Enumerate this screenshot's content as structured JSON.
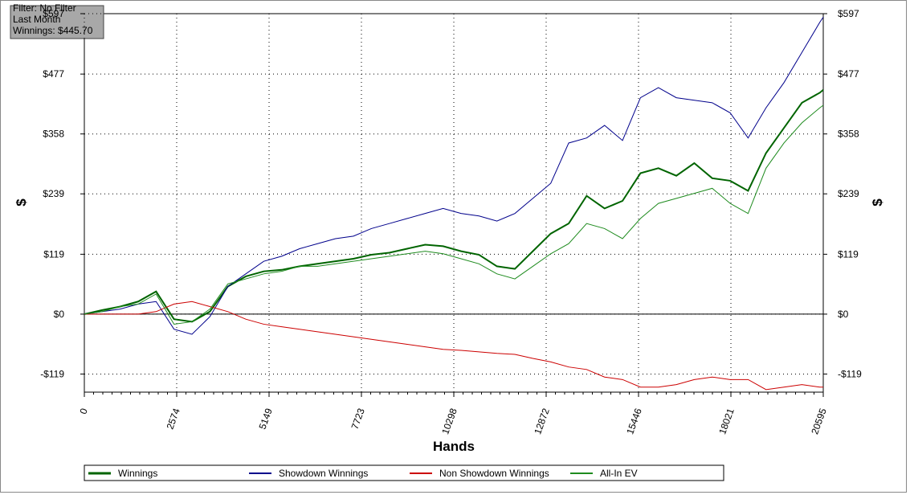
{
  "chart_data": {
    "type": "line",
    "filter_box": [
      "Filter: No Filter",
      "Last Month",
      "Winnings: $445.70"
    ],
    "xlabel": "Hands",
    "ylabel": "$",
    "y2label": "$",
    "xlim": [
      0,
      20595
    ],
    "xticks": [
      0,
      2574,
      5149,
      7723,
      10298,
      12872,
      15446,
      18021,
      20595
    ],
    "ylim": [
      -155,
      597
    ],
    "yticks": [
      {
        "value": -119,
        "label": "-$119"
      },
      {
        "value": 0,
        "label": "$0"
      },
      {
        "value": 119,
        "label": "$119"
      },
      {
        "value": 239,
        "label": "$239"
      },
      {
        "value": 358,
        "label": "$358"
      },
      {
        "value": 477,
        "label": "$477"
      },
      {
        "value": 597,
        "label": "$597"
      }
    ],
    "grid": true,
    "x": [
      0,
      500,
      1000,
      1500,
      2000,
      2500,
      3000,
      3500,
      4000,
      4500,
      5000,
      5500,
      6000,
      6500,
      7000,
      7500,
      8000,
      8500,
      9000,
      9500,
      10000,
      10500,
      11000,
      11500,
      12000,
      12500,
      13000,
      13500,
      14000,
      14500,
      15000,
      15500,
      16000,
      16500,
      17000,
      17500,
      18000,
      18500,
      19000,
      19500,
      20000,
      20500,
      20595
    ],
    "series": [
      {
        "name": "Winnings",
        "color": "#006400",
        "width": 2,
        "values": [
          0,
          8,
          15,
          25,
          45,
          -10,
          -15,
          5,
          55,
          75,
          85,
          88,
          95,
          100,
          105,
          110,
          118,
          122,
          130,
          138,
          135,
          125,
          118,
          95,
          90,
          125,
          160,
          180,
          235,
          210,
          225,
          280,
          290,
          275,
          300,
          270,
          265,
          245,
          320,
          370,
          420,
          440,
          445.7
        ]
      },
      {
        "name": "Showdown Winnings",
        "color": "#00008b",
        "width": 1,
        "values": [
          0,
          5,
          10,
          20,
          25,
          -30,
          -40,
          -5,
          55,
          80,
          105,
          115,
          130,
          140,
          150,
          155,
          170,
          180,
          190,
          200,
          210,
          200,
          195,
          185,
          200,
          230,
          260,
          340,
          350,
          375,
          345,
          430,
          450,
          430,
          425,
          420,
          400,
          350,
          410,
          460,
          520,
          580,
          590
        ]
      },
      {
        "name": "Non Showdown Winnings",
        "color": "#cc0000",
        "width": 1,
        "values": [
          0,
          0,
          0,
          0,
          5,
          20,
          25,
          15,
          5,
          -10,
          -20,
          -25,
          -30,
          -35,
          -40,
          -45,
          -50,
          -55,
          -60,
          -65,
          -70,
          -72,
          -75,
          -78,
          -80,
          -88,
          -95,
          -105,
          -110,
          -125,
          -130,
          -145,
          -145,
          -140,
          -130,
          -125,
          -130,
          -130,
          -150,
          -145,
          -140,
          -145,
          -145
        ]
      },
      {
        "name": "All-In EV",
        "color": "#1e8b1e",
        "width": 1,
        "values": [
          0,
          5,
          15,
          20,
          40,
          -20,
          -15,
          10,
          60,
          70,
          80,
          85,
          95,
          95,
          100,
          105,
          110,
          115,
          120,
          125,
          120,
          110,
          100,
          80,
          70,
          95,
          120,
          140,
          180,
          170,
          150,
          190,
          220,
          230,
          240,
          250,
          220,
          200,
          290,
          340,
          380,
          410,
          415
        ]
      }
    ]
  }
}
